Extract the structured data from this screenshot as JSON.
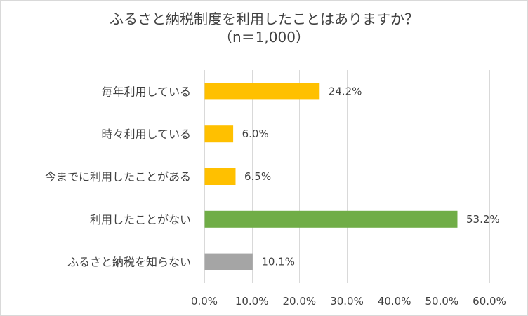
{
  "chart_data": {
    "type": "bar",
    "orientation": "horizontal",
    "title": "ふるさと納税制度を利用したことはありますか？",
    "subtitle": "（n＝1,000）",
    "categories": [
      "毎年利用している",
      "時々利用している",
      "今までに利用したことがある",
      "利用したことがない",
      "ふるさと納税を知らない"
    ],
    "values": [
      24.2,
      6.0,
      6.5,
      53.2,
      10.1
    ],
    "value_labels": [
      "24.2%",
      "6.0%",
      "6.5%",
      "53.2%",
      "10.1%"
    ],
    "bar_colors": [
      "#FFC000",
      "#FFC000",
      "#FFC000",
      "#70AD47",
      "#A5A5A5"
    ],
    "xlim": [
      0,
      60
    ],
    "xticks": [
      0,
      10,
      20,
      30,
      40,
      50,
      60
    ],
    "xtick_labels": [
      "0.0%",
      "10.0%",
      "20.0%",
      "30.0%",
      "40.0%",
      "50.0%",
      "60.0%"
    ],
    "grid": true,
    "legend": "none"
  }
}
